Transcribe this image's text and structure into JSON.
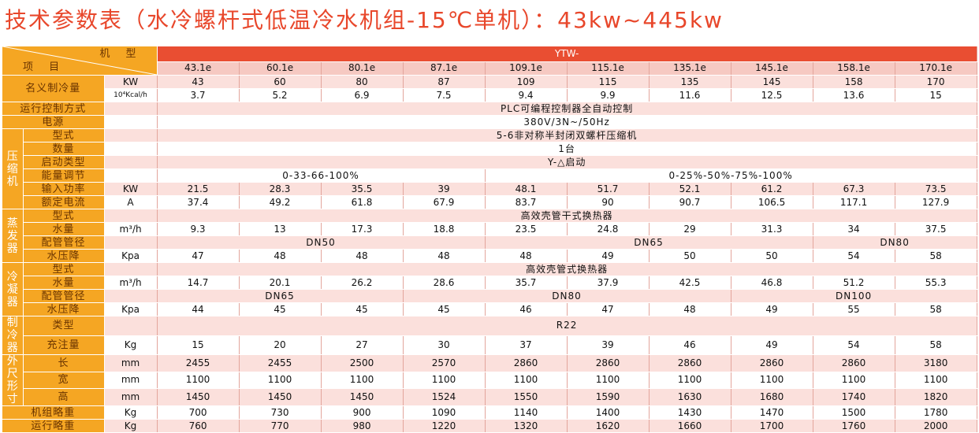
{
  "title": "技术参数表（水冷螺杆式低温冷水机组-15℃单机）：43kw~445kw",
  "header": {
    "corner_top": "机 型",
    "corner_bottom": "项 目",
    "series": "YTW-",
    "models": [
      "43.1e",
      "60.1e",
      "80.1e",
      "87.1e",
      "109.1e",
      "115.1e",
      "135.1e",
      "145.1e",
      "158.1e",
      "170.1e"
    ]
  },
  "labels": {
    "capacity": "名义制冷量",
    "control": "运行控制方式",
    "power_supply": "电源",
    "compressor": "压缩机",
    "comp_type": "型式",
    "comp_qty": "数量",
    "comp_start": "启动类型",
    "comp_adjust": "能量调节",
    "comp_power": "输入功率",
    "comp_current": "额定电流",
    "evaporator": "蒸发器",
    "evap_type": "型式",
    "evap_flow": "水量",
    "evap_pipe": "配管管径",
    "evap_drop": "水压降",
    "condenser": "冷凝器",
    "cond_type": "型式",
    "cond_flow": "水量",
    "cond_pipe": "配管管径",
    "cond_drop": "水压降",
    "refrigerant": "制冷器",
    "ref_type": "类型",
    "ref_charge": "充注量",
    "dims": "外尺形寸",
    "length": "长",
    "width": "宽",
    "height": "高",
    "unit_weight": "机组略重",
    "run_weight": "运行略重"
  },
  "units": {
    "kw": "KW",
    "kcal": "10⁴Kcal/h",
    "a": "A",
    "m3h": "m³/h",
    "kpa": "Kpa",
    "kg": "Kg",
    "mm": "mm"
  },
  "merged": {
    "control": "PLC可编程控制器全自动控制",
    "power_supply": "380V/3N~/50Hz",
    "comp_type": "5-6非对称半封闭双螺杆压缩机",
    "comp_qty": "1台",
    "comp_start": "Y-△启动",
    "comp_adjust_a": "0-33-66-100%",
    "comp_adjust_b": "0-25%-50%-75%-100%",
    "evap_type": "高效壳管干式换热器",
    "evap_pipe_a": "DN50",
    "evap_pipe_b": "DN65",
    "evap_pipe_c": "DN80",
    "cond_type": "高效壳管式换热器",
    "cond_pipe_a": "DN65",
    "cond_pipe_b": "DN80",
    "cond_pipe_c": "DN100",
    "ref_type": "R22"
  },
  "rows": {
    "capacity_kw": [
      "43",
      "60",
      "80",
      "87",
      "109",
      "115",
      "135",
      "145",
      "158",
      "170"
    ],
    "capacity_kcal": [
      "3.7",
      "5.2",
      "6.9",
      "7.5",
      "9.4",
      "9.9",
      "11.6",
      "12.5",
      "13.6",
      "15"
    ],
    "comp_power": [
      "21.5",
      "28.3",
      "35.5",
      "39",
      "48.1",
      "51.7",
      "52.1",
      "61.2",
      "67.3",
      "73.5"
    ],
    "comp_current": [
      "37.4",
      "49.2",
      "61.8",
      "67.9",
      "83.7",
      "90",
      "90.7",
      "106.5",
      "117.1",
      "127.9"
    ],
    "evap_flow": [
      "9.3",
      "13",
      "17.3",
      "18.8",
      "23.5",
      "24.8",
      "29",
      "31.3",
      "34",
      "37.5"
    ],
    "evap_drop": [
      "47",
      "48",
      "48",
      "48",
      "48",
      "49",
      "50",
      "50",
      "54",
      "58"
    ],
    "cond_flow": [
      "14.7",
      "20.1",
      "26.2",
      "28.6",
      "35.7",
      "37.9",
      "42.5",
      "46.8",
      "51.2",
      "55.3"
    ],
    "cond_drop": [
      "44",
      "45",
      "45",
      "45",
      "46",
      "47",
      "48",
      "49",
      "55",
      "58"
    ],
    "ref_charge": [
      "15",
      "20",
      "27",
      "30",
      "37",
      "39",
      "46",
      "49",
      "54",
      "58"
    ],
    "length": [
      "2455",
      "2455",
      "2500",
      "2570",
      "2860",
      "2860",
      "2860",
      "2860",
      "2860",
      "3180"
    ],
    "width": [
      "1100",
      "1100",
      "1100",
      "1100",
      "1100",
      "1100",
      "1100",
      "1100",
      "1100",
      "1100"
    ],
    "height": [
      "1450",
      "1450",
      "1450",
      "1524",
      "1550",
      "1590",
      "1630",
      "1680",
      "1740",
      "1820"
    ],
    "unit_weight": [
      "700",
      "730",
      "900",
      "1090",
      "1140",
      "1400",
      "1430",
      "1470",
      "1500",
      "1780"
    ],
    "run_weight": [
      "760",
      "770",
      "980",
      "1220",
      "1320",
      "1620",
      "1660",
      "1700",
      "1760",
      "2000"
    ]
  }
}
